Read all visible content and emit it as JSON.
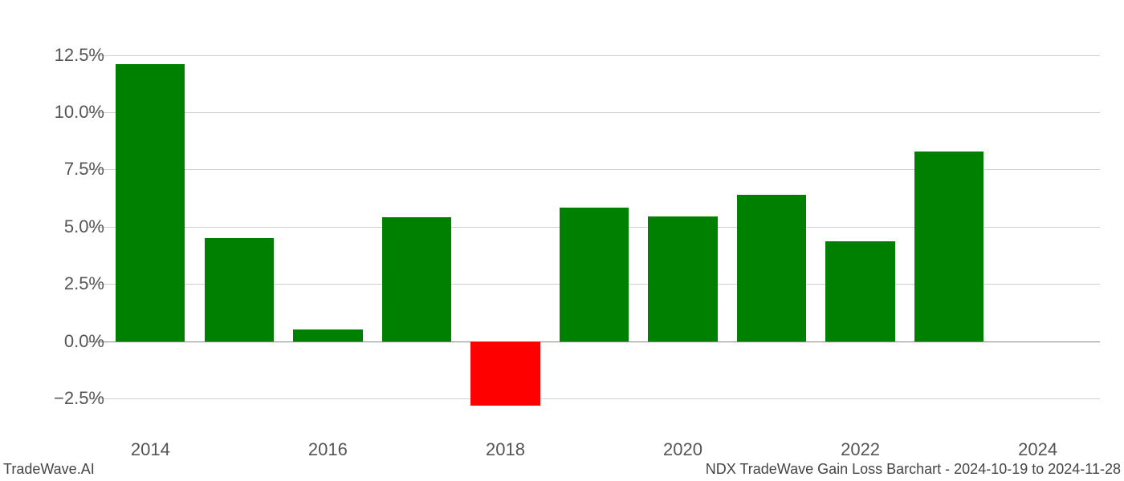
{
  "chart": {
    "type": "bar",
    "background_color": "#ffffff",
    "grid_color": "#d0d0d0",
    "axis_color": "#888888",
    "label_color": "#555555",
    "label_fontsize": 22,
    "positive_color": "#008000",
    "negative_color": "#ff0000",
    "y_min": -4.0,
    "y_max": 13.5,
    "y_ticks": [
      -2.5,
      0.0,
      2.5,
      5.0,
      7.5,
      10.0,
      12.5
    ],
    "y_tick_labels": [
      "−2.5%",
      "0.0%",
      "2.5%",
      "5.0%",
      "7.5%",
      "10.0%",
      "12.5%"
    ],
    "x_ticks": [
      2014,
      2016,
      2018,
      2020,
      2022,
      2024
    ],
    "x_tick_labels": [
      "2014",
      "2016",
      "2018",
      "2020",
      "2022",
      "2024"
    ],
    "x_min": 2013.3,
    "x_max": 2024.7,
    "bar_width_years": 0.78,
    "data": [
      {
        "year": 2014,
        "value": 12.1
      },
      {
        "year": 2015,
        "value": 4.5
      },
      {
        "year": 2016,
        "value": 0.5
      },
      {
        "year": 2017,
        "value": 5.4
      },
      {
        "year": 2018,
        "value": -2.8
      },
      {
        "year": 2019,
        "value": 5.85
      },
      {
        "year": 2020,
        "value": 5.45
      },
      {
        "year": 2021,
        "value": 6.4
      },
      {
        "year": 2022,
        "value": 4.38
      },
      {
        "year": 2023,
        "value": 8.3
      }
    ]
  },
  "footer": {
    "left": "TradeWave.AI",
    "right": "NDX TradeWave Gain Loss Barchart - 2024-10-19 to 2024-11-28"
  }
}
